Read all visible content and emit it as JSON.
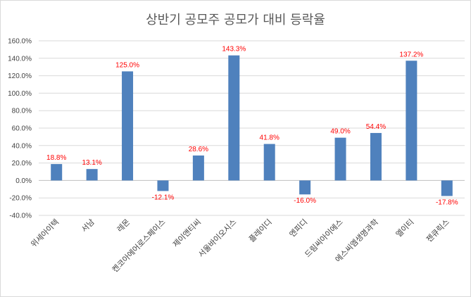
{
  "chart_data": {
    "type": "bar",
    "title": "상반기 공모주 공모가 대비 등락율",
    "xlabel": "",
    "ylabel": "",
    "categories": [
      "위세아이텍",
      "서남",
      "레몬",
      "켄코아에어로스페이스",
      "제이앤티씨",
      "서울바이오시스",
      "플레이디",
      "엔피디",
      "드림씨아이에스",
      "에스씨엠생명과학",
      "엘이티",
      "젠큐릭스"
    ],
    "values": [
      18.8,
      13.1,
      125.0,
      -12.1,
      28.6,
      143.3,
      41.8,
      -16.0,
      49.0,
      54.4,
      137.2,
      -17.8
    ],
    "value_labels": [
      "18.8%",
      "13.1%",
      "125.0%",
      "-12.1%",
      "28.6%",
      "143.3%",
      "41.8%",
      "-16.0%",
      "49.0%",
      "54.4%",
      "137.2%",
      "-17.8%"
    ],
    "ylim": [
      -40,
      160
    ],
    "ytick_labels": [
      "160.0%",
      "140.0%",
      "120.0%",
      "100.0%",
      "80.0%",
      "60.0%",
      "40.0%",
      "20.0%",
      "0.0%",
      "-20.0%",
      "-40.0%"
    ],
    "grid": true,
    "legend": "none",
    "colors": {
      "bar": "#4f81bd",
      "label": "#ff0000",
      "grid": "#d9d9d9"
    }
  }
}
